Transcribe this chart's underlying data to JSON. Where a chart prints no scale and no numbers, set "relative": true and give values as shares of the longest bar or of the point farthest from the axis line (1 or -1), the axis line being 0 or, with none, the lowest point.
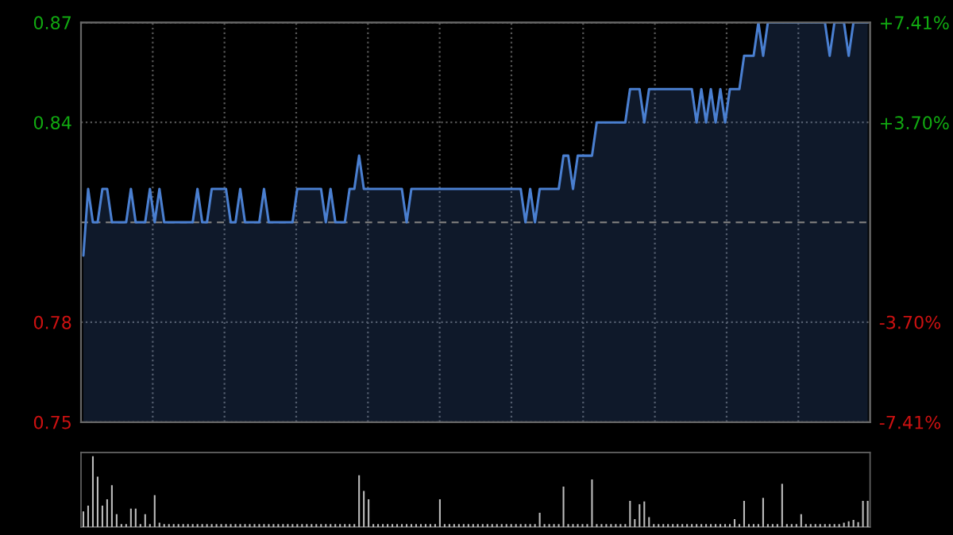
{
  "chart_data": [
    {
      "type": "area",
      "categories": [
        null,
        null,
        null,
        null,
        null,
        null,
        null,
        null,
        null,
        null,
        null,
        null,
        null,
        null,
        null,
        null,
        null,
        null,
        null,
        null,
        null,
        null,
        null,
        null,
        null,
        null,
        null,
        null,
        null,
        null,
        null,
        null,
        null,
        null,
        null,
        null,
        null,
        null,
        null,
        null,
        null,
        null,
        null,
        null,
        null,
        null,
        null,
        null,
        null,
        null,
        null,
        null,
        null,
        null,
        null,
        null,
        null,
        null,
        null,
        null,
        null,
        null,
        null,
        null,
        null,
        null,
        null,
        null,
        null,
        null,
        null,
        null,
        null,
        null,
        null,
        null,
        null,
        null,
        null,
        null,
        null,
        null,
        null,
        null,
        null,
        null,
        null,
        null,
        null,
        null,
        null,
        null,
        null,
        null,
        null,
        null,
        null,
        null,
        null,
        null,
        null,
        null,
        null,
        null,
        null,
        null,
        null,
        null,
        null,
        null,
        null,
        null,
        null,
        null,
        null,
        null,
        null,
        null,
        null,
        null,
        null,
        null,
        null,
        null,
        null,
        null,
        null,
        null,
        null,
        null,
        null,
        null,
        null,
        null,
        null,
        null,
        null,
        null,
        null,
        null,
        null,
        null,
        null,
        null,
        null,
        null,
        null,
        null,
        null,
        null,
        null,
        null,
        null,
        null,
        null,
        null,
        null,
        null,
        null,
        null,
        null,
        null,
        null,
        null,
        null,
        null
      ],
      "series": [
        {
          "color": "#4a7fd0",
          "values": [
            0.8,
            0.82,
            0.81,
            0.81,
            0.82,
            0.82,
            0.81,
            0.81,
            0.81,
            0.81,
            0.82,
            0.81,
            0.81,
            0.81,
            0.82,
            0.81,
            0.82,
            0.81,
            0.81,
            0.81,
            0.81,
            0.81,
            0.81,
            0.81,
            0.82,
            0.81,
            0.81,
            0.82,
            0.82,
            0.82,
            0.82,
            0.81,
            0.81,
            0.82,
            0.81,
            0.81,
            0.81,
            0.81,
            0.82,
            0.81,
            0.81,
            0.81,
            0.81,
            0.81,
            0.81,
            0.82,
            0.82,
            0.82,
            0.82,
            0.82,
            0.82,
            0.81,
            0.82,
            0.81,
            0.81,
            0.81,
            0.82,
            0.82,
            0.83,
            0.82,
            0.82,
            0.82,
            0.82,
            0.82,
            0.82,
            0.82,
            0.82,
            0.82,
            0.81,
            0.82,
            0.82,
            0.82,
            0.82,
            0.82,
            0.82,
            0.82,
            0.82,
            0.82,
            0.82,
            0.82,
            0.82,
            0.82,
            0.82,
            0.82,
            0.82,
            0.82,
            0.82,
            0.82,
            0.82,
            0.82,
            0.82,
            0.82,
            0.82,
            0.81,
            0.82,
            0.81,
            0.82,
            0.82,
            0.82,
            0.82,
            0.82,
            0.83,
            0.83,
            0.82,
            0.83,
            0.83,
            0.83,
            0.83,
            0.84,
            0.84,
            0.84,
            0.84,
            0.84,
            0.84,
            0.84,
            0.85,
            0.85,
            0.85,
            0.84,
            0.85,
            0.85,
            0.85,
            0.85,
            0.85,
            0.85,
            0.85,
            0.85,
            0.85,
            0.85,
            0.84,
            0.85,
            0.84,
            0.85,
            0.84,
            0.85,
            0.84,
            0.85,
            0.85,
            0.85,
            0.86,
            0.86,
            0.86,
            0.87,
            0.86,
            0.87,
            0.87,
            0.87,
            0.87,
            0.87,
            0.87,
            0.87,
            0.87,
            0.87,
            0.87,
            0.87,
            0.87,
            0.87,
            0.86,
            0.87,
            0.87,
            0.87,
            0.86,
            0.87,
            0.87,
            0.87,
            0.87
          ]
        }
      ],
      "ylim": [
        0.75,
        0.87
      ],
      "yticks": [
        0.75,
        0.78,
        0.84,
        0.87
      ],
      "y2lim": [
        -7.41,
        7.41
      ],
      "y2ticks": [
        {
          "value": -7.41,
          "label": "-7.41%"
        },
        {
          "value": -3.7,
          "label": "-3.70%"
        },
        {
          "value": 3.7,
          "label": "+3.70%"
        },
        {
          "value": 7.41,
          "label": "+7.41%"
        }
      ],
      "ref_lines": [
        {
          "axis": "y",
          "value": 0.81,
          "color": "#777777",
          "line_style": "dashed"
        }
      ],
      "grid": true,
      "legend": false,
      "tick_labels": "y"
    },
    {
      "type": "bar",
      "relative": true,
      "color": "#bbbbbb",
      "categories": [
        null,
        null,
        null,
        null,
        null,
        null,
        null,
        null,
        null,
        null,
        null,
        null,
        null,
        null,
        null,
        null,
        null,
        null,
        null,
        null,
        null,
        null,
        null,
        null,
        null,
        null,
        null,
        null,
        null,
        null,
        null,
        null,
        null,
        null,
        null,
        null,
        null,
        null,
        null,
        null,
        null,
        null,
        null,
        null,
        null,
        null,
        null,
        null,
        null,
        null,
        null,
        null,
        null,
        null,
        null,
        null,
        null,
        null,
        null,
        null,
        null,
        null,
        null,
        null,
        null,
        null,
        null,
        null,
        null,
        null,
        null,
        null,
        null,
        null,
        null,
        null,
        null,
        null,
        null,
        null,
        null,
        null,
        null,
        null,
        null,
        null,
        null,
        null,
        null,
        null,
        null,
        null,
        null,
        null,
        null,
        null,
        null,
        null,
        null,
        null,
        null,
        null,
        null,
        null,
        null,
        null,
        null,
        null,
        null,
        null,
        null,
        null,
        null,
        null,
        null,
        null,
        null,
        null,
        null,
        null,
        null,
        null,
        null,
        null,
        null,
        null,
        null,
        null,
        null,
        null,
        null,
        null,
        null,
        null,
        null,
        null,
        null,
        null,
        null,
        null,
        null,
        null,
        null,
        null,
        null,
        null,
        null,
        null,
        null,
        null,
        null,
        null,
        null,
        null,
        null,
        null,
        null,
        null,
        null,
        null,
        null,
        null,
        null,
        null,
        null,
        null
      ],
      "values": [
        0.22,
        0.3,
        1.0,
        0.71,
        0.3,
        0.39,
        0.59,
        0.18,
        0.04,
        0.04,
        0.26,
        0.26,
        0.04,
        0.18,
        0.04,
        0.45,
        0.06,
        0.04,
        0.04,
        0.04,
        0.04,
        0.04,
        0.04,
        0.04,
        0.04,
        0.04,
        0.04,
        0.04,
        0.04,
        0.04,
        0.04,
        0.04,
        0.04,
        0.04,
        0.04,
        0.04,
        0.04,
        0.04,
        0.04,
        0.04,
        0.04,
        0.04,
        0.04,
        0.04,
        0.04,
        0.04,
        0.04,
        0.04,
        0.04,
        0.04,
        0.04,
        0.04,
        0.04,
        0.04,
        0.04,
        0.04,
        0.04,
        0.04,
        0.73,
        0.51,
        0.39,
        0.04,
        0.04,
        0.04,
        0.04,
        0.04,
        0.04,
        0.04,
        0.04,
        0.04,
        0.04,
        0.04,
        0.04,
        0.04,
        0.04,
        0.39,
        0.04,
        0.04,
        0.04,
        0.04,
        0.04,
        0.04,
        0.04,
        0.04,
        0.04,
        0.04,
        0.04,
        0.04,
        0.04,
        0.04,
        0.04,
        0.04,
        0.04,
        0.04,
        0.04,
        0.04,
        0.2,
        0.04,
        0.04,
        0.04,
        0.04,
        0.57,
        0.04,
        0.04,
        0.04,
        0.04,
        0.04,
        0.67,
        0.04,
        0.04,
        0.04,
        0.04,
        0.04,
        0.04,
        0.04,
        0.37,
        0.11,
        0.32,
        0.36,
        0.14,
        0.04,
        0.04,
        0.04,
        0.04,
        0.04,
        0.04,
        0.04,
        0.04,
        0.04,
        0.04,
        0.04,
        0.04,
        0.04,
        0.04,
        0.04,
        0.04,
        0.04,
        0.11,
        0.04,
        0.37,
        0.04,
        0.04,
        0.04,
        0.41,
        0.04,
        0.04,
        0.04,
        0.61,
        0.04,
        0.04,
        0.04,
        0.18,
        0.04,
        0.04,
        0.04,
        0.04,
        0.04,
        0.04,
        0.04,
        0.04,
        0.06,
        0.08,
        0.1,
        0.07,
        0.37,
        0.37
      ],
      "grid": false,
      "legend": false,
      "tick_labels": false
    }
  ]
}
